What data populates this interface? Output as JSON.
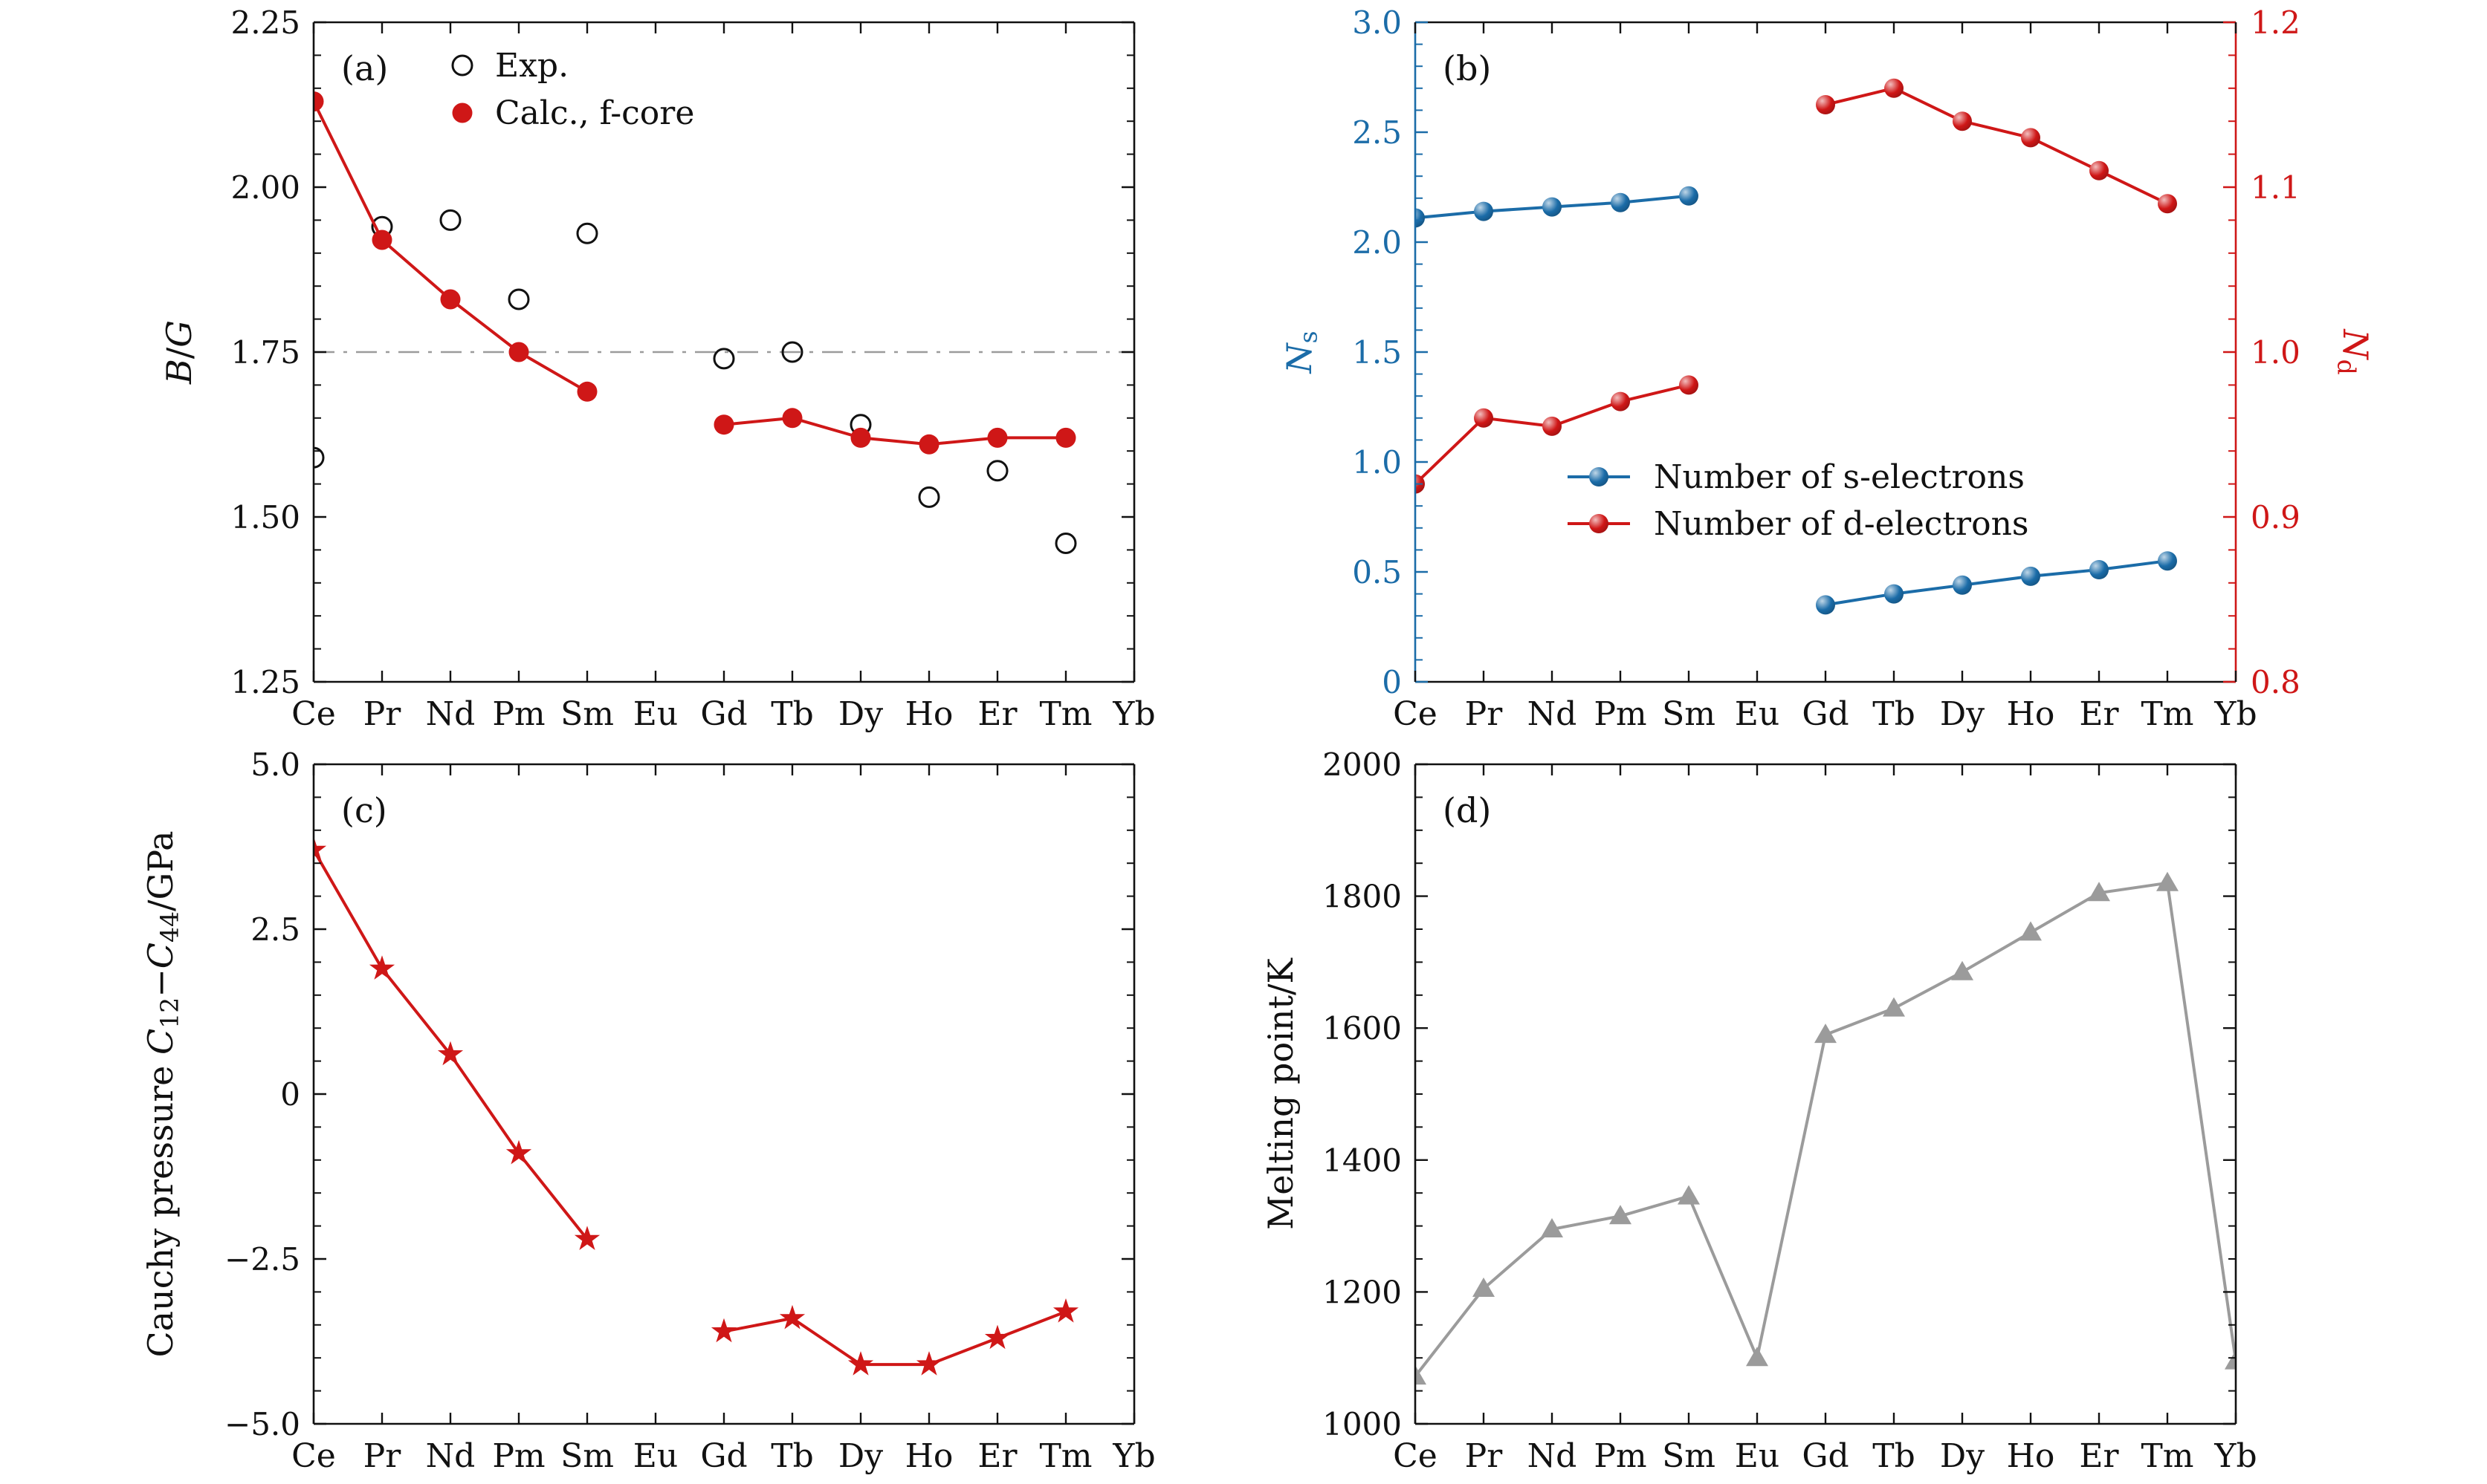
{
  "figure": {
    "background": "#ffffff",
    "colors": {
      "black": "#111111",
      "red": "#cf1717",
      "blue": "#1b6ca8",
      "gray": "#9b9b9b",
      "ref_gray": "#9b9b9b"
    },
    "elements": [
      "Ce",
      "Pr",
      "Nd",
      "Pm",
      "Sm",
      "Eu",
      "Gd",
      "Tb",
      "Dy",
      "Ho",
      "Er",
      "Tm",
      "Yb"
    ]
  },
  "chart_data": [
    {
      "id": "a",
      "panel_label": "(a)",
      "type": "scatter",
      "categories": [
        "Ce",
        "Pr",
        "Nd",
        "Pm",
        "Sm",
        "Eu",
        "Gd",
        "Tb",
        "Dy",
        "Ho",
        "Er",
        "Tm",
        "Yb"
      ],
      "ylabel": "B/G",
      "ylabel_parts": [
        {
          "t": "B",
          "i": true
        },
        {
          "t": "/"
        },
        {
          "t": "G",
          "i": true
        }
      ],
      "ylim": [
        1.25,
        2.25
      ],
      "ytick_vals": [
        1.25,
        1.5,
        1.75,
        2.0,
        2.25
      ],
      "yticks": [
        "1.25",
        "1.50",
        "1.75",
        "2.00",
        "2.25"
      ],
      "y_minor_step": 0.05,
      "ref_line": {
        "value": 1.75,
        "style": "dash-dot",
        "color": "#9b9b9b"
      },
      "series": [
        {
          "name": "Exp.",
          "marker": "open-circle",
          "color": "#111111",
          "line": false,
          "values": [
            1.59,
            1.94,
            1.95,
            1.83,
            1.93,
            null,
            1.74,
            1.75,
            1.64,
            1.53,
            1.57,
            1.46,
            null
          ]
        },
        {
          "name": "Calc., f-core",
          "marker": "filled-circle",
          "color": "#cf1717",
          "line": true,
          "values": [
            2.13,
            1.92,
            1.83,
            1.75,
            1.69,
            null,
            1.64,
            1.65,
            1.62,
            1.61,
            1.62,
            1.62,
            null
          ]
        }
      ],
      "legend": {
        "position": "top-left-inside",
        "items": [
          "Exp.",
          "Calc., f-core"
        ]
      }
    },
    {
      "id": "b",
      "panel_label": "(b)",
      "type": "scatter-line-dual-axis",
      "categories": [
        "Ce",
        "Pr",
        "Nd",
        "Pm",
        "Sm",
        "Eu",
        "Gd",
        "Tb",
        "Dy",
        "Ho",
        "Er",
        "Tm",
        "Yb"
      ],
      "left_axis": {
        "label": "Ns",
        "label_parts": [
          {
            "t": "N",
            "i": true
          },
          {
            "t": "s",
            "sub": true
          }
        ],
        "lim": [
          0,
          3.0
        ],
        "tick_vals": [
          0,
          0.5,
          1.0,
          1.5,
          2.0,
          2.5,
          3.0
        ],
        "ticks": [
          "0",
          "0.5",
          "1.0",
          "1.5",
          "2.0",
          "2.5",
          "3.0"
        ],
        "minor_step": 0.1,
        "color": "#1b6ca8"
      },
      "right_axis": {
        "label": "Nd",
        "label_parts": [
          {
            "t": "N",
            "i": true
          },
          {
            "t": "d",
            "sub": true
          }
        ],
        "lim": [
          0.8,
          1.2
        ],
        "tick_vals": [
          0.8,
          0.9,
          1.0,
          1.1,
          1.2
        ],
        "ticks": [
          "0.8",
          "0.9",
          "1.0",
          "1.1",
          "1.2"
        ],
        "minor_step": 0.02,
        "color": "#cf1717"
      },
      "series": [
        {
          "name": "Number of s-electrons",
          "axis": "left",
          "marker": "ball",
          "color": "#1b6ca8",
          "line": true,
          "values": [
            2.11,
            2.14,
            2.16,
            2.18,
            2.21,
            null,
            0.35,
            0.4,
            0.44,
            0.48,
            0.51,
            0.55,
            null
          ]
        },
        {
          "name": "Number of d-electrons",
          "axis": "right",
          "marker": "ball",
          "color": "#cf1717",
          "line": true,
          "values": [
            0.92,
            0.96,
            0.955,
            0.97,
            0.98,
            null,
            1.15,
            1.16,
            1.14,
            1.13,
            1.11,
            1.09,
            null
          ]
        }
      ],
      "legend": {
        "position": "center-left-inside",
        "items": [
          "Number of s-electrons",
          "Number of d-electrons"
        ]
      }
    },
    {
      "id": "c",
      "panel_label": "(c)",
      "type": "scatter-line",
      "categories": [
        "Ce",
        "Pr",
        "Nd",
        "Pm",
        "Sm",
        "Eu",
        "Gd",
        "Tb",
        "Dy",
        "Ho",
        "Er",
        "Tm",
        "Yb"
      ],
      "ylabel": "Cauchy pressure C12−C44/GPa",
      "ylabel_parts": [
        {
          "t": "Cauchy pressure "
        },
        {
          "t": "C",
          "i": true
        },
        {
          "t": "12",
          "sub": true
        },
        {
          "t": "−"
        },
        {
          "t": "C",
          "i": true
        },
        {
          "t": "44",
          "sub": true
        },
        {
          "t": "/GPa"
        }
      ],
      "ylim": [
        -5.0,
        5.0
      ],
      "ytick_vals": [
        -5.0,
        -2.5,
        0,
        2.5,
        5.0
      ],
      "yticks": [
        "−5.0",
        "−2.5",
        "0",
        "2.5",
        "5.0"
      ],
      "y_minor_step": 0.5,
      "series": [
        {
          "name": "Cauchy pressure",
          "marker": "star",
          "color": "#cf1717",
          "line": true,
          "values": [
            3.7,
            1.9,
            0.6,
            -0.9,
            -2.2,
            null,
            -3.6,
            -3.4,
            -4.1,
            -4.1,
            -3.7,
            -3.3,
            null
          ]
        }
      ]
    },
    {
      "id": "d",
      "panel_label": "(d)",
      "type": "scatter-line",
      "categories": [
        "Ce",
        "Pr",
        "Nd",
        "Pm",
        "Sm",
        "Eu",
        "Gd",
        "Tb",
        "Dy",
        "Ho",
        "Er",
        "Tm",
        "Yb"
      ],
      "ylabel": "Melting point/K",
      "ylabel_parts": [
        {
          "t": "Melting point/K"
        }
      ],
      "ylim": [
        1000,
        2000
      ],
      "ytick_vals": [
        1000,
        1200,
        1400,
        1600,
        1800,
        2000
      ],
      "yticks": [
        "1000",
        "1200",
        "1400",
        "1600",
        "1800",
        "2000"
      ],
      "y_minor_step": 50,
      "series": [
        {
          "name": "Melting point",
          "marker": "triangle",
          "color": "#9b9b9b",
          "line": true,
          "values": [
            1072,
            1205,
            1295,
            1315,
            1345,
            1100,
            1590,
            1630,
            1685,
            1745,
            1805,
            1820,
            1095
          ]
        }
      ]
    }
  ]
}
